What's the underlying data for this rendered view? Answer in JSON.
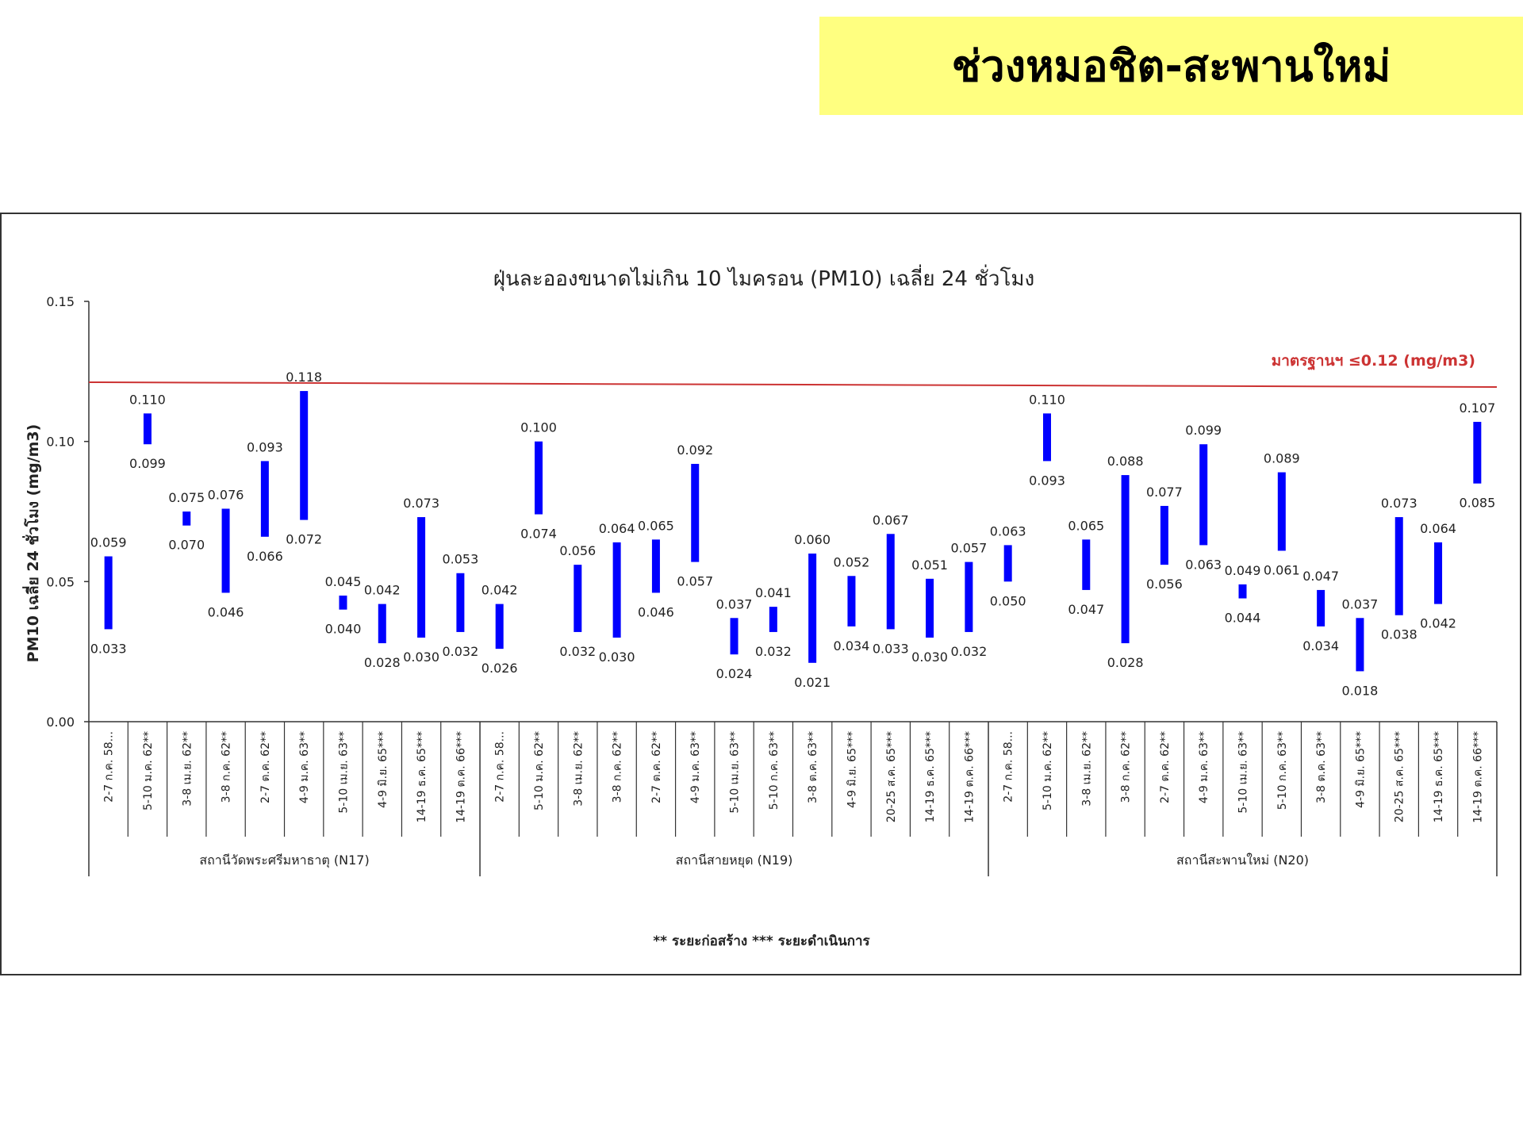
{
  "page_title": "ช่วงหมอชิต-สะพานใหม่",
  "chart_data": {
    "type": "bar",
    "title": "ฝุ่นละอองขนาดไม่เกิน 10 ไมครอน (PM10) เฉลี่ย 24 ชั่วโมง",
    "ylabel": "PM10 เฉลี่ย 24 ชั่วโมง (mg/m3)",
    "ylim": [
      0,
      0.15
    ],
    "yticks": [
      "0.00",
      "0.05",
      "0.10",
      "0.15"
    ],
    "standard": {
      "value": 0.12,
      "label": "มาตรฐานฯ ≤0.12 (mg/m3)",
      "color": "#cc3333"
    },
    "bar_color": "#0000ff",
    "legend_note": "** ระยะก่อสร้าง    *** ระยะดำเนินการ",
    "groups": [
      {
        "name": "สถานีวัดพระศรีมหาธาตุ (N17)",
        "bars": [
          {
            "label": "2-7 ก.ค. 58...",
            "min": 0.033,
            "max": 0.059
          },
          {
            "label": "5-10 ม.ค. 62**",
            "min": 0.099,
            "max": 0.11
          },
          {
            "label": "3-8 เม.ย. 62**",
            "min": 0.07,
            "max": 0.075
          },
          {
            "label": "3-8 ก.ค. 62**",
            "min": 0.046,
            "max": 0.076
          },
          {
            "label": "2-7 ต.ค. 62**",
            "min": 0.066,
            "max": 0.093
          },
          {
            "label": "4-9 ม.ค. 63**",
            "min": 0.072,
            "max": 0.118
          },
          {
            "label": "5-10 เม.ย. 63**",
            "min": 0.04,
            "max": 0.045
          },
          {
            "label": "4-9 มิ.ย. 65***",
            "min": 0.028,
            "max": 0.042
          },
          {
            "label": "14-19 ธ.ค. 65***",
            "min": 0.03,
            "max": 0.073
          },
          {
            "label": "14-19 ต.ค. 66***",
            "min": 0.032,
            "max": 0.053
          }
        ]
      },
      {
        "name": "สถานีสายหยุด (N19)",
        "bars": [
          {
            "label": "2-7 ก.ค. 58...",
            "min": 0.026,
            "max": 0.042
          },
          {
            "label": "5-10 ม.ค. 62**",
            "min": 0.074,
            "max": 0.1
          },
          {
            "label": "3-8 เม.ย. 62**",
            "min": 0.032,
            "max": 0.056
          },
          {
            "label": "3-8 ก.ค. 62**",
            "min": 0.03,
            "max": 0.064
          },
          {
            "label": "2-7 ต.ค. 62**",
            "min": 0.046,
            "max": 0.065
          },
          {
            "label": "4-9 ม.ค. 63**",
            "min": 0.057,
            "max": 0.092
          },
          {
            "label": "5-10 เม.ย. 63**",
            "min": 0.024,
            "max": 0.037
          },
          {
            "label": "5-10 ก.ค. 63**",
            "min": 0.032,
            "max": 0.041
          },
          {
            "label": "3-8 ต.ค. 63**",
            "min": 0.021,
            "max": 0.06
          },
          {
            "label": "4-9 มิ.ย. 65***",
            "min": 0.034,
            "max": 0.052
          },
          {
            "label": "20-25 ส.ค. 65***",
            "min": 0.033,
            "max": 0.067
          },
          {
            "label": "14-19 ธ.ค. 65***",
            "min": 0.03,
            "max": 0.051
          },
          {
            "label": "14-19 ต.ค. 66***",
            "min": 0.032,
            "max": 0.057
          }
        ]
      },
      {
        "name": "สถานีสะพานใหม่ (N20)",
        "bars": [
          {
            "label": "2-7 ก.ค. 58...",
            "min": 0.05,
            "max": 0.063
          },
          {
            "label": "5-10 ม.ค. 62**",
            "min": 0.093,
            "max": 0.11
          },
          {
            "label": "3-8 เม.ย. 62**",
            "min": 0.047,
            "max": 0.065
          },
          {
            "label": "3-8 ก.ค. 62**",
            "min": 0.028,
            "max": 0.088
          },
          {
            "label": "2-7 ต.ค. 62**",
            "min": 0.056,
            "max": 0.077
          },
          {
            "label": "4-9 ม.ค. 63**",
            "min": 0.063,
            "max": 0.099
          },
          {
            "label": "5-10 เม.ย. 63**",
            "min": 0.044,
            "max": 0.049
          },
          {
            "label": "5-10 ก.ค. 63**",
            "min": 0.061,
            "max": 0.089
          },
          {
            "label": "3-8 ต.ค. 63**",
            "min": 0.034,
            "max": 0.047
          },
          {
            "label": "4-9 มิ.ย. 65***",
            "min": 0.018,
            "max": 0.037
          },
          {
            "label": "20-25 ส.ค. 65***",
            "min": 0.038,
            "max": 0.073
          },
          {
            "label": "14-19 ธ.ค. 65***",
            "min": 0.042,
            "max": 0.064
          },
          {
            "label": "14-19 ต.ค. 66***",
            "min": 0.085,
            "max": 0.107
          }
        ]
      }
    ]
  }
}
